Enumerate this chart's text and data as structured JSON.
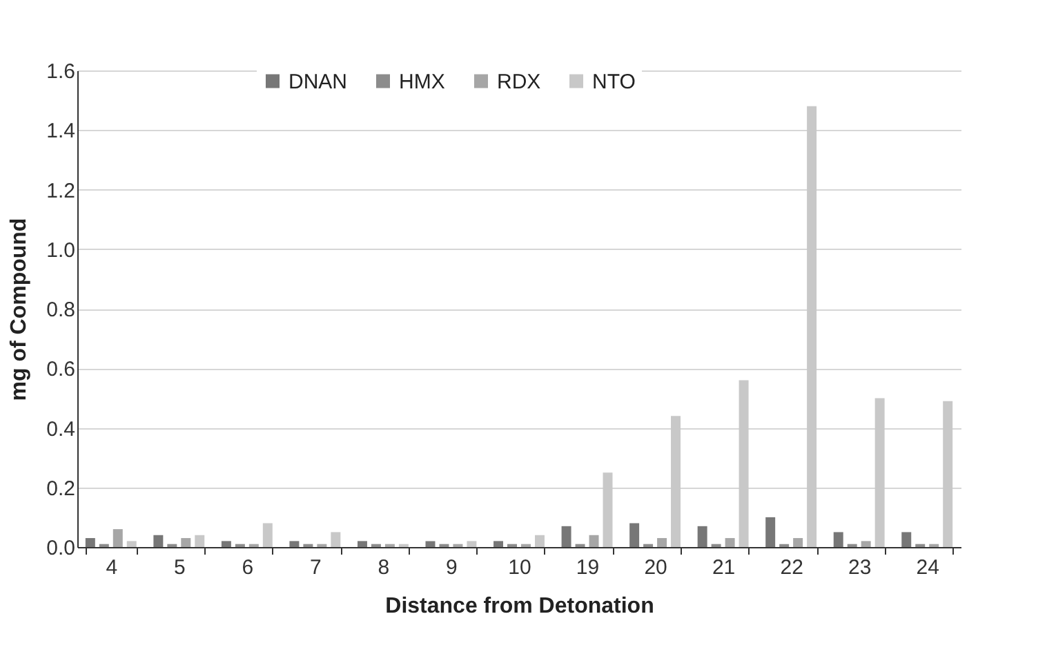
{
  "chart_data": {
    "type": "bar",
    "xlabel": "Distance from Detonation",
    "ylabel": "mg of Compound",
    "categories": [
      "4",
      "5",
      "6",
      "7",
      "8",
      "9",
      "10",
      "19",
      "20",
      "21",
      "22",
      "23",
      "24"
    ],
    "series": [
      {
        "name": "DNAN",
        "color": "#777777",
        "values": [
          0.03,
          0.04,
          0.02,
          0.02,
          0.02,
          0.02,
          0.02,
          0.07,
          0.08,
          0.07,
          0.1,
          0.05,
          0.05
        ]
      },
      {
        "name": "HMX",
        "color": "#8c8c8c",
        "values": [
          0.01,
          0.01,
          0.01,
          0.01,
          0.01,
          0.01,
          0.01,
          0.01,
          0.01,
          0.01,
          0.01,
          0.01,
          0.01
        ]
      },
      {
        "name": "RDX",
        "color": "#a6a6a6",
        "values": [
          0.06,
          0.03,
          0.01,
          0.01,
          0.01,
          0.01,
          0.01,
          0.04,
          0.03,
          0.03,
          0.03,
          0.02,
          0.01
        ]
      },
      {
        "name": "NTO",
        "color": "#c8c8c8",
        "values": [
          0.02,
          0.04,
          0.08,
          0.05,
          0.01,
          0.02,
          0.04,
          0.25,
          0.44,
          0.56,
          1.48,
          0.5,
          0.49
        ]
      }
    ],
    "ylim": [
      0,
      1.6
    ],
    "yticks": [
      {
        "value": 0,
        "label": "0.0"
      },
      {
        "value": 0.2,
        "label": "0.2"
      },
      {
        "value": 0.4,
        "label": "0.4"
      },
      {
        "value": 0.6,
        "label": "0.6"
      },
      {
        "value": 0.8,
        "label": "0.8"
      },
      {
        "value": 1,
        "label": "1.0"
      },
      {
        "value": 1.2,
        "label": "1.2"
      },
      {
        "value": 1.4,
        "label": "1.4"
      },
      {
        "value": 1.6,
        "label": "1.6"
      }
    ],
    "grid": "y",
    "legend": "top"
  }
}
